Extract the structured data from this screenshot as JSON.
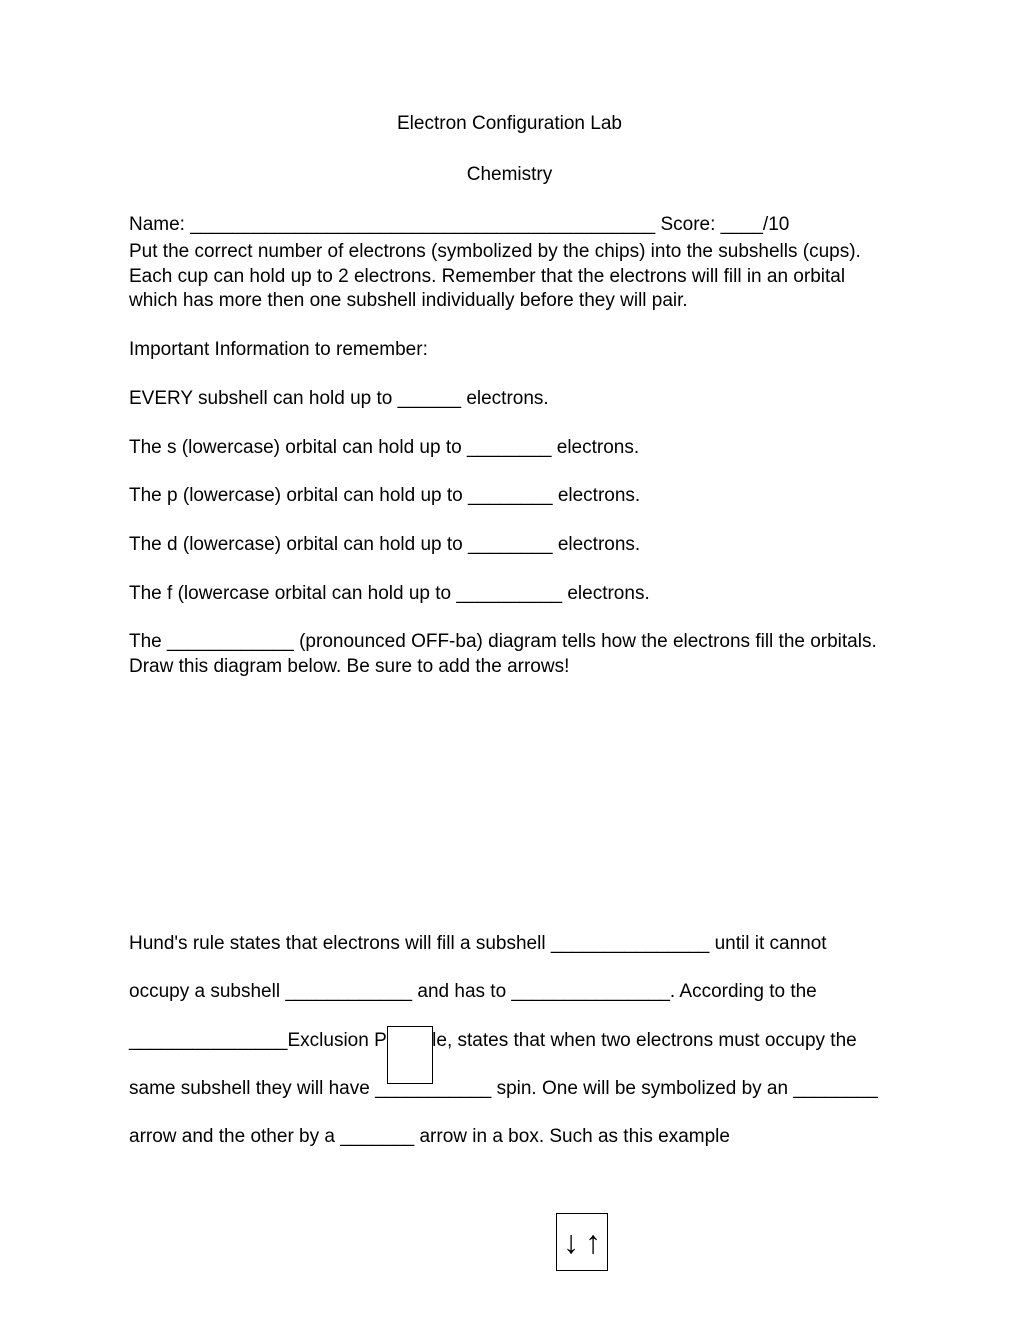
{
  "title": "Electron Configuration Lab",
  "subtitle": "Chemistry",
  "name_score": "Name: ____________________________________________ Score: ____/10",
  "instructions": "Put the correct number of electrons (symbolized by the chips) into the subshells (cups).  Each cup can hold up to 2 electrons. Remember that the electrons will fill in an orbital which has more then one subshell individually before they will pair.",
  "important_header": "Important Information to remember:",
  "line_every": "EVERY subshell can hold up to ______ electrons.",
  "line_s": "The s (lowercase) orbital can hold up to ________ electrons.",
  "line_p": "The p (lowercase) orbital can hold up to ________ electrons.",
  "line_d": "The d (lowercase) orbital can hold up to ________ electrons.",
  "line_f": "The f (lowercase orbital can hold up to __________ electrons.",
  "aufbau": "The ____________ (pronounced OFF-ba) diagram tells how the electrons fill the orbitals.  Draw this diagram below. Be sure to add the arrows!",
  "hunds": "Hund's rule states that electrons will fill a subshell _______________ until it cannot occupy a subshell ____________ and has to _______________. According to the _______________Exclusion Principle, states that when two electrons must occupy the same subshell they will have ___________ spin. One will be symbolized by an ________ arrow and the other by a _______ arrow in a box. Such as this example",
  "arrow_down": "↓",
  "arrow_up": "↑"
}
